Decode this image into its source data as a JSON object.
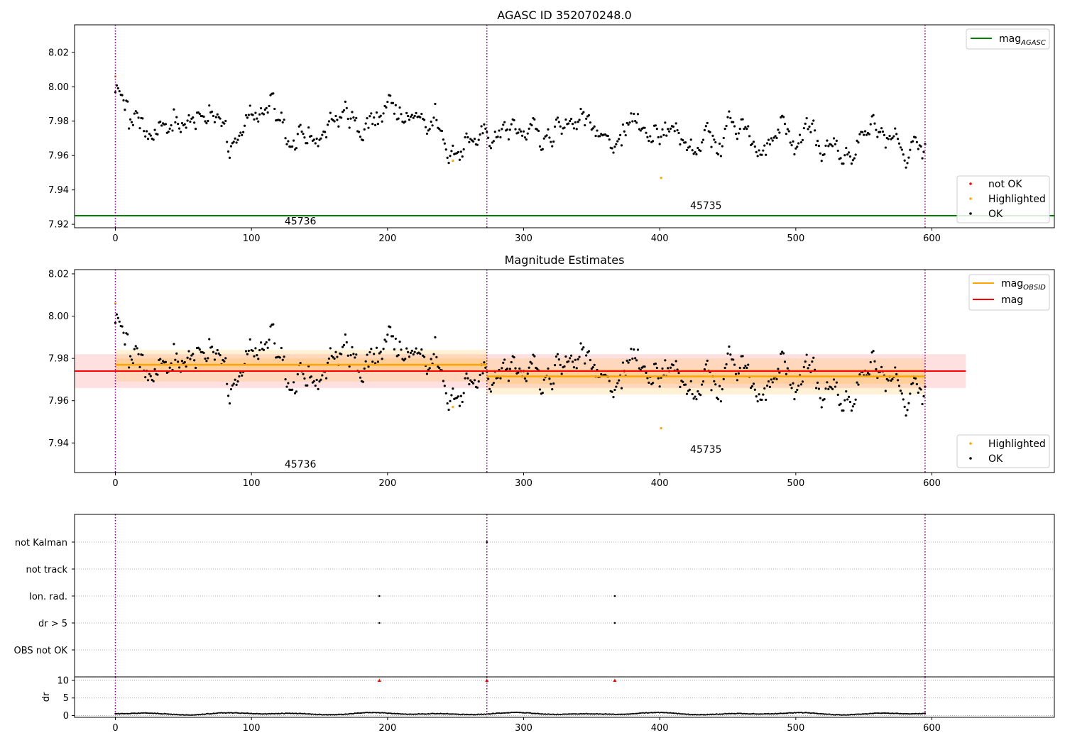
{
  "chart_data": [
    {
      "type": "scatter",
      "title": "AGASC ID 352070248.0",
      "xlim": [
        -30,
        690
      ],
      "ylim": [
        7.918,
        8.036
      ],
      "xticks": [
        0,
        100,
        200,
        300,
        400,
        500,
        600
      ],
      "yticks": [
        7.92,
        7.94,
        7.96,
        7.98,
        8.0,
        8.02
      ],
      "ytick_labels": [
        "7.92",
        "7.94",
        "7.96",
        "7.98",
        "8.00",
        "8.02"
      ],
      "vlines": [
        0,
        273,
        595
      ],
      "hlines": [
        {
          "name": "mag_AGASC",
          "y": 7.925,
          "color": "#008000"
        }
      ],
      "annotations": [
        {
          "text": "45736",
          "x": 136,
          "y": 7.922
        },
        {
          "text": "45735",
          "x": 434,
          "y": 7.931
        }
      ],
      "highlighted_points": [
        {
          "x": 0,
          "y": 8.006
        },
        {
          "x": 248,
          "y": 7.957
        },
        {
          "x": 401,
          "y": 7.947
        }
      ],
      "series": [
        {
          "name": "not OK",
          "color": "#ff0000",
          "x": [],
          "y": []
        },
        {
          "name": "Highlighted",
          "color": "#ffa500"
        },
        {
          "name": "OK",
          "color": "#000000"
        }
      ],
      "legend_lines": [
        {
          "label": "mag",
          "sub": "AGASC",
          "color": "#008000"
        }
      ],
      "legend_points": [
        {
          "label": "not OK",
          "color": "#ff0000"
        },
        {
          "label": "Highlighted",
          "color": "#ffa500"
        },
        {
          "label": "OK",
          "color": "#000000"
        }
      ],
      "segments": [
        {
          "x0": 0,
          "x1": 273,
          "level": 7.9775,
          "amp": 0.009
        },
        {
          "x0": 273,
          "x1": 595,
          "level": 7.9715,
          "amp": 0.01
        }
      ],
      "legend_placement": [
        "top-right",
        "bottom-right"
      ]
    },
    {
      "type": "scatter",
      "title": "Magnitude Estimates",
      "xlim": [
        -30,
        690
      ],
      "ylim": [
        7.926,
        8.022
      ],
      "xticks": [
        0,
        100,
        200,
        300,
        400,
        500,
        600
      ],
      "yticks": [
        7.94,
        7.96,
        7.98,
        8.0,
        8.02
      ],
      "ytick_labels": [
        "7.94",
        "7.96",
        "7.98",
        "8.00",
        "8.02"
      ],
      "vlines": [
        0,
        273,
        595
      ],
      "mag": {
        "value": 7.974,
        "x0": -30,
        "x1": 625,
        "band": [
          7.966,
          7.982
        ],
        "color": "#ff0000"
      },
      "mag_obsid": [
        {
          "x0": 0,
          "x1": 273,
          "value": 7.977,
          "band": [
            7.969,
            7.984
          ],
          "inner": [
            7.974,
            7.98
          ]
        },
        {
          "x0": 273,
          "x1": 595,
          "value": 7.9715,
          "band": [
            7.963,
            7.98
          ],
          "inner": [
            7.968,
            7.975
          ]
        }
      ],
      "annotations": [
        {
          "text": "45736",
          "x": 136,
          "y": 7.93
        },
        {
          "text": "45735",
          "x": 434,
          "y": 7.937
        }
      ],
      "highlighted_points": [
        {
          "x": 0,
          "y": 8.006
        },
        {
          "x": 248,
          "y": 7.957
        },
        {
          "x": 401,
          "y": 7.947
        }
      ],
      "legend_lines": [
        {
          "label": "mag",
          "sub": "OBSID",
          "color": "#ffa500"
        },
        {
          "label": "mag",
          "sub": "",
          "color": "#ff0000"
        }
      ],
      "legend_points": [
        {
          "label": "Highlighted",
          "color": "#ffa500"
        },
        {
          "label": "OK",
          "color": "#000000"
        }
      ],
      "legend_placement": [
        "top-right",
        "bottom-right"
      ]
    },
    {
      "type": "scatter",
      "title": "",
      "xlim": [
        -30,
        690
      ],
      "categories": [
        "not Kalman",
        "not track",
        "Ion. rad.",
        "dr > 5",
        "OBS not OK"
      ],
      "flags": [
        {
          "category": "not Kalman",
          "x": [
            273
          ]
        },
        {
          "category": "not track",
          "x": []
        },
        {
          "category": "Ion. rad.",
          "x": [
            194,
            367
          ]
        },
        {
          "category": "dr > 5",
          "x": [
            194,
            367
          ]
        },
        {
          "category": "OBS not OK",
          "x": []
        }
      ],
      "vlines": [
        0,
        273,
        595
      ]
    },
    {
      "type": "scatter",
      "title": "",
      "xlim": [
        -30,
        690
      ],
      "ylim": [
        -0.5,
        11
      ],
      "ylabel": "dr",
      "xticks": [
        0,
        100,
        200,
        300,
        400,
        500,
        600
      ],
      "yticks": [
        0,
        5,
        10
      ],
      "ytick_labels": [
        "0",
        "5",
        "10"
      ],
      "outliers": [
        {
          "x": 194,
          "y": 10
        },
        {
          "x": 273,
          "y": 10
        },
        {
          "x": 367,
          "y": 10
        }
      ],
      "vlines": [
        0,
        273,
        595
      ]
    }
  ]
}
